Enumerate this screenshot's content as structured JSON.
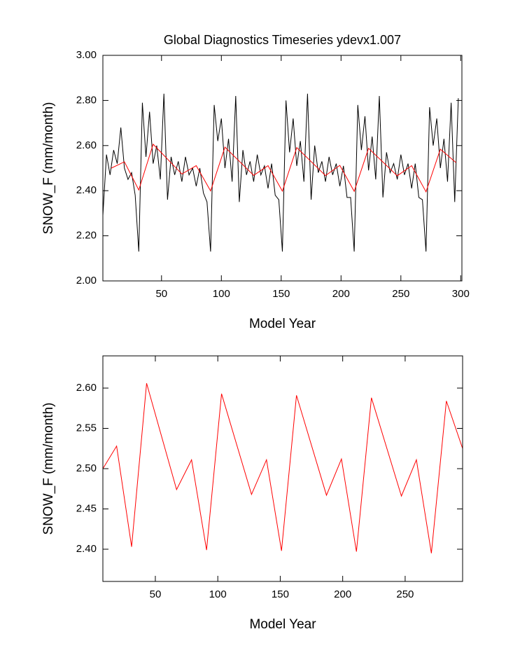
{
  "chart_data": [
    {
      "type": "line",
      "title": "Global Diagnostics Timeseries ydevx1.007",
      "x_label": "Model Year",
      "y_label": "SNOW_F (mm/month)",
      "xlim": [
        1,
        301
      ],
      "ylim": [
        2,
        3
      ],
      "xticks": [
        50,
        100,
        150,
        200,
        250,
        300
      ],
      "yticks": [
        {
          "value": 2,
          "label": "2.00"
        },
        {
          "value": 2.2,
          "label": "2.20"
        },
        {
          "value": 2.4,
          "label": "2.40"
        },
        {
          "value": 2.6,
          "label": "2.60"
        },
        {
          "value": 2.8,
          "label": "2.80"
        },
        {
          "value": 3,
          "label": "3.00"
        }
      ],
      "series": [
        {
          "color": "#000000",
          "x": [
            1,
            4,
            7,
            10,
            13,
            16,
            19,
            22,
            25,
            28,
            31,
            34,
            37,
            40,
            43,
            46,
            49,
            52,
            55,
            58,
            61,
            64,
            67,
            70,
            73,
            76,
            79,
            82,
            85,
            88,
            91,
            94,
            97,
            100,
            103,
            106,
            109,
            112,
            115,
            118,
            121,
            124,
            127,
            130,
            133,
            136,
            139,
            142,
            145,
            148,
            151,
            154,
            157,
            160,
            163,
            166,
            169,
            172,
            175,
            178,
            181,
            184,
            187,
            190,
            193,
            196,
            199,
            202,
            205,
            208,
            211,
            214,
            217,
            220,
            223,
            226,
            229,
            232,
            235,
            238,
            241,
            244,
            247,
            250,
            253,
            256,
            259,
            262,
            265,
            268,
            271,
            274,
            277,
            280,
            283,
            286,
            289,
            292,
            295,
            298
          ],
          "values": [
            2.29,
            2.56,
            2.47,
            2.58,
            2.52,
            2.68,
            2.5,
            2.45,
            2.48,
            2.38,
            2.13,
            2.79,
            2.55,
            2.75,
            2.52,
            2.6,
            2.45,
            2.83,
            2.36,
            2.55,
            2.47,
            2.53,
            2.44,
            2.55,
            2.47,
            2.5,
            2.42,
            2.5,
            2.39,
            2.35,
            2.13,
            2.78,
            2.62,
            2.72,
            2.5,
            2.63,
            2.44,
            2.82,
            2.35,
            2.58,
            2.47,
            2.53,
            2.44,
            2.56,
            2.47,
            2.51,
            2.41,
            2.52,
            2.38,
            2.36,
            2.13,
            2.8,
            2.57,
            2.72,
            2.51,
            2.62,
            2.44,
            2.83,
            2.36,
            2.6,
            2.48,
            2.53,
            2.44,
            2.55,
            2.47,
            2.52,
            2.42,
            2.51,
            2.37,
            2.37,
            2.13,
            2.78,
            2.58,
            2.73,
            2.49,
            2.64,
            2.45,
            2.82,
            2.37,
            2.57,
            2.48,
            2.52,
            2.45,
            2.56,
            2.47,
            2.52,
            2.41,
            2.52,
            2.37,
            2.36,
            2.13,
            2.77,
            2.6,
            2.72,
            2.5,
            2.63,
            2.44,
            2.79,
            2.35,
            2.81
          ]
        },
        {
          "color": "#ff0000",
          "x": [
            8,
            19,
            31,
            43,
            67,
            79,
            91,
            103,
            127,
            139,
            151,
            163,
            187,
            199,
            211,
            223,
            247,
            259,
            271,
            283,
            296
          ],
          "values": [
            2.5,
            2.528,
            2.403,
            2.606,
            2.474,
            2.511,
            2.399,
            2.593,
            2.468,
            2.511,
            2.398,
            2.591,
            2.467,
            2.512,
            2.397,
            2.588,
            2.466,
            2.511,
            2.395,
            2.584,
            2.525
          ]
        }
      ]
    },
    {
      "type": "line",
      "x_label": "Model Year",
      "y_label": "SNOW_F (mm/month)",
      "xlim": [
        8,
        296
      ],
      "ylim": [
        2.36,
        2.64
      ],
      "xticks": [
        50,
        100,
        150,
        200,
        250
      ],
      "yticks": [
        {
          "value": 2.4,
          "label": "2.40"
        },
        {
          "value": 2.45,
          "label": "2.45"
        },
        {
          "value": 2.5,
          "label": "2.50"
        },
        {
          "value": 2.55,
          "label": "2.55"
        },
        {
          "value": 2.6,
          "label": "2.60"
        }
      ],
      "series": [
        {
          "color": "#ff0000",
          "x": [
            8,
            19,
            31,
            43,
            67,
            79,
            91,
            103,
            127,
            139,
            151,
            163,
            187,
            199,
            211,
            223,
            247,
            259,
            271,
            283,
            296
          ],
          "values": [
            2.5,
            2.528,
            2.403,
            2.606,
            2.474,
            2.511,
            2.399,
            2.593,
            2.468,
            2.511,
            2.398,
            2.591,
            2.467,
            2.512,
            2.397,
            2.588,
            2.466,
            2.511,
            2.395,
            2.584,
            2.525
          ]
        }
      ]
    }
  ]
}
